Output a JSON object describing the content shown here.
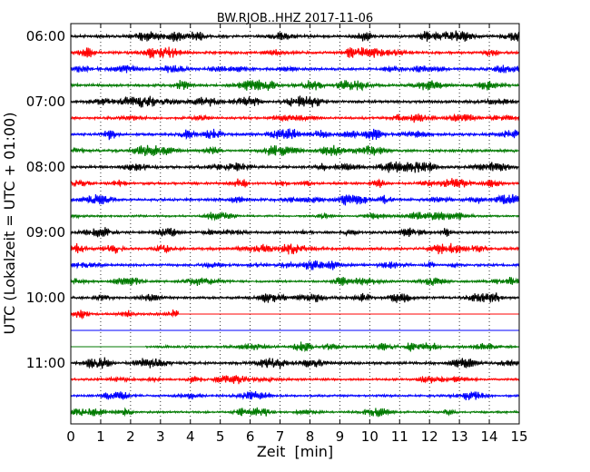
{
  "chart_data": {
    "type": "line",
    "title": "BW.RJOB..HHZ 2017-11-06",
    "xlabel": "Zeit  [min]",
    "ylabel": "UTC (Lokalzeit = UTC + 01:00)",
    "xlim": [
      0,
      15
    ],
    "x_ticks": [
      "0",
      "1",
      "2",
      "3",
      "4",
      "5",
      "6",
      "7",
      "8",
      "9",
      "10",
      "11",
      "12",
      "13",
      "14",
      "15"
    ],
    "y_ticks": [
      "06:00",
      "07:00",
      "08:00",
      "09:00",
      "10:00",
      "11:00"
    ],
    "grid": "vertical-dotted",
    "trace_minutes": 15,
    "colors": [
      "#000000",
      "#ff0000",
      "#0000ff",
      "#007a00"
    ],
    "traces": [
      {
        "start": "06:00",
        "color": "#000000",
        "segments": [
          [
            0,
            15,
            1.0
          ]
        ]
      },
      {
        "start": "06:15",
        "color": "#ff0000",
        "segments": [
          [
            0,
            15,
            1.0
          ]
        ]
      },
      {
        "start": "06:30",
        "color": "#0000ff",
        "segments": [
          [
            0,
            15,
            0.9
          ]
        ]
      },
      {
        "start": "06:45",
        "color": "#007a00",
        "segments": [
          [
            0,
            15,
            1.0
          ]
        ]
      },
      {
        "start": "07:00",
        "color": "#000000",
        "segments": [
          [
            0,
            15,
            1.0
          ]
        ]
      },
      {
        "start": "07:15",
        "color": "#ff0000",
        "segments": [
          [
            0,
            15,
            0.9
          ]
        ]
      },
      {
        "start": "07:30",
        "color": "#0000ff",
        "segments": [
          [
            0,
            15,
            1.0
          ]
        ]
      },
      {
        "start": "07:45",
        "color": "#007a00",
        "segments": [
          [
            0,
            15,
            1.0
          ]
        ]
      },
      {
        "start": "08:00",
        "color": "#000000",
        "segments": [
          [
            0,
            15,
            1.0
          ]
        ]
      },
      {
        "start": "08:15",
        "color": "#ff0000",
        "segments": [
          [
            0,
            15,
            0.9
          ]
        ]
      },
      {
        "start": "08:30",
        "color": "#0000ff",
        "segments": [
          [
            0,
            15,
            1.0
          ]
        ]
      },
      {
        "start": "08:45",
        "color": "#007a00",
        "segments": [
          [
            0,
            15,
            0.7
          ]
        ]
      },
      {
        "start": "09:00",
        "color": "#000000",
        "segments": [
          [
            0,
            15,
            0.9
          ]
        ]
      },
      {
        "start": "09:15",
        "color": "#ff0000",
        "segments": [
          [
            0,
            15,
            1.0
          ]
        ]
      },
      {
        "start": "09:30",
        "color": "#0000ff",
        "segments": [
          [
            0,
            15,
            0.9
          ]
        ]
      },
      {
        "start": "09:45",
        "color": "#007a00",
        "segments": [
          [
            0,
            15,
            0.8
          ]
        ]
      },
      {
        "start": "10:00",
        "color": "#000000",
        "segments": [
          [
            0,
            15,
            0.9
          ]
        ]
      },
      {
        "start": "10:15",
        "color": "#ff0000",
        "segments": [
          [
            0,
            3.6,
            0.8
          ],
          [
            3.6,
            15,
            0.0
          ]
        ]
      },
      {
        "start": "10:30",
        "color": "#0000ff",
        "segments": [
          [
            0,
            15,
            0.0
          ]
        ]
      },
      {
        "start": "10:45",
        "color": "#007a00",
        "segments": [
          [
            0,
            2.5,
            0.0
          ],
          [
            2.5,
            15,
            0.9
          ]
        ]
      },
      {
        "start": "11:00",
        "color": "#000000",
        "segments": [
          [
            0,
            15,
            1.0
          ]
        ]
      },
      {
        "start": "11:15",
        "color": "#ff0000",
        "segments": [
          [
            0,
            15,
            0.8
          ]
        ]
      },
      {
        "start": "11:30",
        "color": "#0000ff",
        "segments": [
          [
            0,
            15,
            0.8
          ]
        ]
      },
      {
        "start": "11:45",
        "color": "#007a00",
        "segments": [
          [
            0,
            15,
            0.8
          ]
        ]
      }
    ]
  }
}
